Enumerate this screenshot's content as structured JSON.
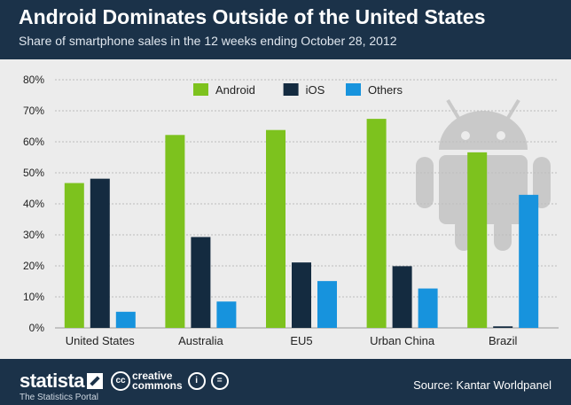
{
  "header": {
    "title": "Android Dominates Outside of the United States",
    "subtitle": "Share of smartphone sales in the 12 weeks ending October 28, 2012"
  },
  "footer": {
    "brand": "statista",
    "tagline": "The Statistics Portal",
    "license_text_top": "creative",
    "license_text_bottom": "commons",
    "license_badge": "cc",
    "source": "Source: Kantar Worldpanel"
  },
  "colors": {
    "android": "#7dc21e",
    "ios": "#142b40",
    "others": "#1793dd",
    "header_bg": "#1b3249",
    "plot_bg": "#ececec"
  },
  "icons": [
    "android-robot-watermark-icon",
    "statista-logo-icon",
    "creative-commons-icon",
    "attribution-icon",
    "no-derivatives-icon"
  ],
  "chart_data": {
    "type": "bar",
    "categories": [
      "United States",
      "Australia",
      "EU5",
      "Urban China",
      "Brazil"
    ],
    "series": [
      {
        "name": "Android",
        "values": [
          46.7,
          62.2,
          63.8,
          67.4,
          56.6
        ],
        "color": "#7dc21e"
      },
      {
        "name": "iOS",
        "values": [
          48.1,
          29.3,
          21.1,
          19.9,
          0.5
        ],
        "color": "#142b40"
      },
      {
        "name": "Others",
        "values": [
          5.2,
          8.5,
          15.1,
          12.7,
          42.9
        ],
        "color": "#1793dd"
      }
    ],
    "ylim": [
      0,
      80
    ],
    "yticks": [
      "0%",
      "10%",
      "20%",
      "30%",
      "40%",
      "50%",
      "60%",
      "70%",
      "80%"
    ],
    "grid": true,
    "legend": "top-center"
  }
}
